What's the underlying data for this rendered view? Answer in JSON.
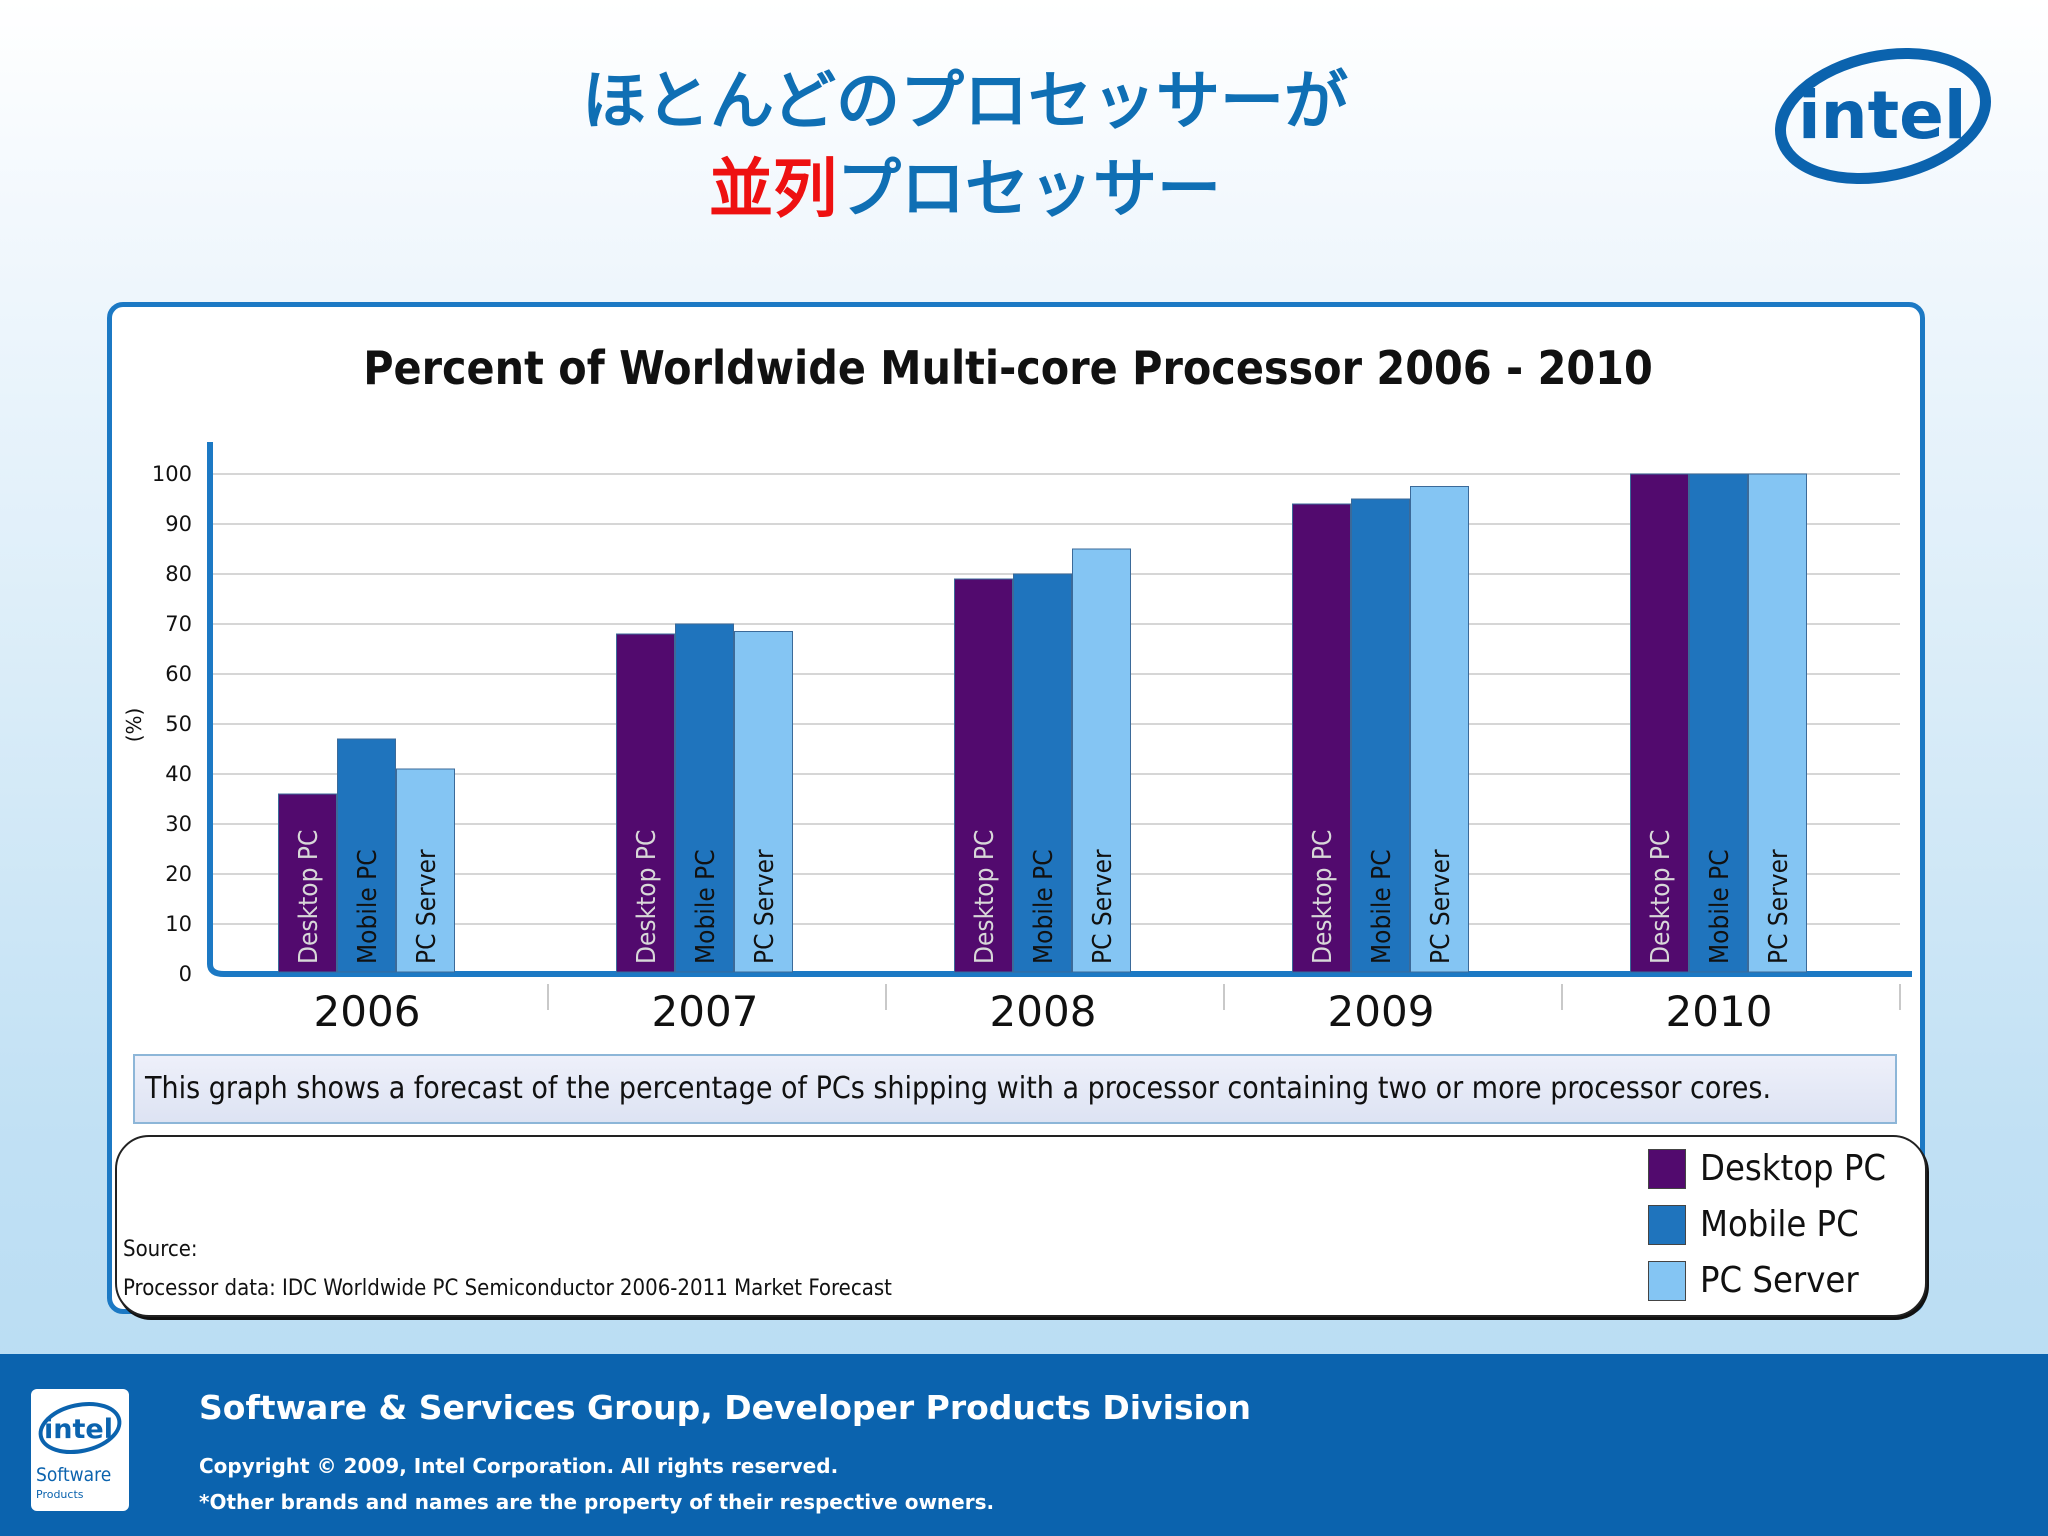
{
  "slide": {
    "title_line1": "ほとんどのプロセッサーが",
    "title_line2_highlight": "並列",
    "title_line2_rest": "プロセッサー",
    "title_color": "#0f6fb4",
    "highlight_color": "#ee1111",
    "logo_text": "intel"
  },
  "chart_data": {
    "type": "bar",
    "title": "Percent of Worldwide Multi-core Processor 2006 - 2010",
    "xlabel": "",
    "ylabel": "(%)",
    "ylim": [
      0,
      100
    ],
    "yticks": [
      0,
      10,
      20,
      30,
      40,
      50,
      60,
      70,
      80,
      90,
      100
    ],
    "grid": true,
    "categories": [
      "2006",
      "2007",
      "2008",
      "2009",
      "2010"
    ],
    "series": [
      {
        "name": "Desktop PC",
        "bar_label": "Desktop PC",
        "color": "#520a6e",
        "values": [
          36,
          68,
          79,
          94,
          100
        ]
      },
      {
        "name": "Mobile PC",
        "bar_label": "Mobile PC",
        "color": "#1f74bd",
        "values": [
          47,
          70,
          80,
          95,
          100
        ]
      },
      {
        "name": "PC Server",
        "bar_label": "PC Server",
        "color": "#84c5f3",
        "values": [
          41,
          68.5,
          85,
          97.5,
          100
        ]
      }
    ],
    "caption": "This graph shows a forecast of the percentage of PCs shipping with a processor containing two or more processor cores.",
    "legend_position": "bottom-right"
  },
  "source": {
    "label": "Source:",
    "text": "Processor data: IDC Worldwide PC Semiconductor 2006-2011 Market Forecast"
  },
  "footer": {
    "group": "Software & Services Group, Developer Products Division",
    "copyright": "Copyright © 2009, Intel Corporation. All rights reserved.",
    "trademark": "*Other brands and names are the property of their respective owners.",
    "logo_text": "intel",
    "logo_subtext": "Software",
    "logo_subtext2": "Products",
    "background": "#0b63ae"
  }
}
